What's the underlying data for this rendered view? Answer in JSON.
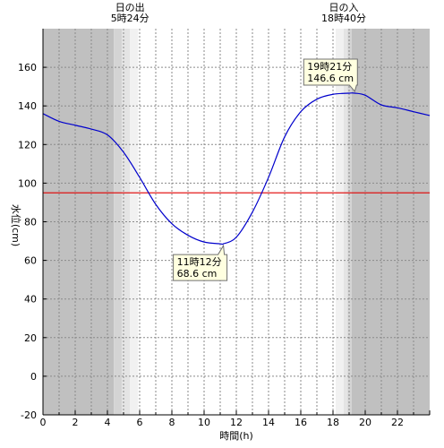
{
  "chart_data": {
    "type": "line",
    "xlabel": "時間(h)",
    "ylabel": "水位(cm)",
    "xlim": [
      0,
      24
    ],
    "ylim": [
      -20,
      180
    ],
    "xticks": [
      0,
      2,
      4,
      6,
      8,
      10,
      12,
      14,
      16,
      18,
      20,
      22
    ],
    "xtick_labels": [
      "0",
      "2",
      "4",
      "6",
      "8",
      "10",
      "12",
      "14",
      "16",
      "18",
      "20",
      "22"
    ],
    "yticks": [
      -20,
      0,
      20,
      40,
      60,
      80,
      100,
      120,
      140,
      160
    ],
    "ytick_labels": [
      "-20",
      "0",
      "20",
      "40",
      "60",
      "80",
      "100",
      "120",
      "140",
      "160"
    ],
    "grid": true,
    "reference_line": {
      "y": 95,
      "color": "#e00000"
    },
    "sunrise": {
      "hour": 5.4,
      "title": "日の出",
      "time": "5時24分"
    },
    "sunset": {
      "hour": 18.667,
      "title": "日の入",
      "time": "18時40分"
    },
    "night_color": "#c0c0c0",
    "series": [
      {
        "color": "#0000cc",
        "x": [
          0,
          1,
          2,
          3,
          4,
          5,
          6,
          7,
          8,
          9,
          10,
          11,
          11.2,
          12,
          13,
          14,
          15,
          16,
          17,
          18,
          19,
          19.35,
          20,
          21,
          22,
          23,
          24
        ],
        "y": [
          136,
          132,
          130,
          128,
          125,
          116,
          103,
          89,
          79,
          73,
          69.5,
          68.6,
          68.6,
          72,
          85,
          103,
          124,
          137,
          143.5,
          146,
          146.6,
          146.6,
          145.5,
          140.5,
          139,
          137,
          135
        ]
      }
    ],
    "annotations": [
      {
        "time": "11時12分",
        "value": "68.6 cm",
        "x": 11.2,
        "y": 68.6
      },
      {
        "time": "19時21分",
        "value": "146.6 cm",
        "x": 19.35,
        "y": 146.6
      }
    ]
  }
}
